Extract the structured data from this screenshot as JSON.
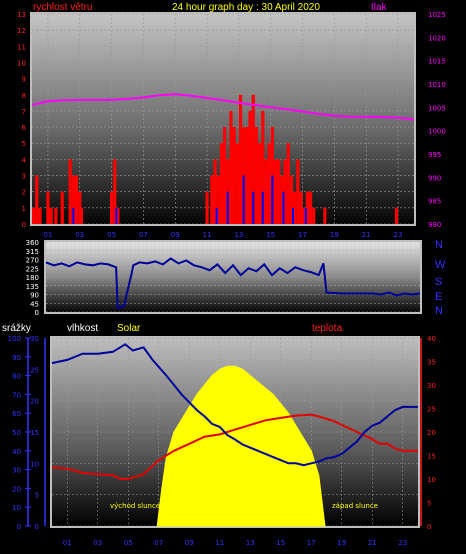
{
  "header": {
    "wind_label": "rychlost větru",
    "title": "24 hour graph day : 30 April 2020",
    "pressure_label": "tlak"
  },
  "direction_letters": [
    "N",
    "W",
    "S",
    "E",
    "N"
  ],
  "bottom_labels": {
    "rain": "srážky",
    "humidity": "vlhkost",
    "solar": "Solar",
    "temperature": "teplota",
    "sunrise": "východ slunce",
    "sunset": "západ slunce"
  },
  "colors": {
    "wind": "#ff0000",
    "gust": "#0000ff",
    "pressure": "#ff00ff",
    "direction": "#000099",
    "humidity": "#00009a",
    "temperature": "#e00000",
    "solar": "#ffff00",
    "title": "#ffff00",
    "axis_left": "#ff2020",
    "axis_blue": "#3333ff"
  },
  "chart_data": [
    {
      "type": "bar",
      "name": "wind-and-pressure",
      "x_ticks": [
        "01",
        "03",
        "05",
        "07",
        "09",
        "11",
        "13",
        "15",
        "17",
        "19",
        "21",
        "23"
      ],
      "xlim": [
        0,
        24
      ],
      "ylim_left": [
        0,
        13
      ],
      "y_ticks_left": [
        "0",
        "1",
        "2",
        "3",
        "4",
        "5",
        "6",
        "7",
        "8",
        "9",
        "10",
        "11",
        "12",
        "13"
      ],
      "ylim_right": [
        980,
        1025
      ],
      "y_ticks_right": [
        "980",
        "985",
        "990",
        "995",
        "1000",
        "1005",
        "1010",
        "1015",
        "1020",
        "1025"
      ],
      "pressure": {
        "x": [
          0,
          1,
          2,
          3,
          4,
          5,
          6,
          7,
          8,
          9,
          10,
          11,
          12,
          13,
          14,
          15,
          16,
          17,
          18,
          19,
          20,
          21,
          22,
          23,
          24
        ],
        "y": [
          1005.5,
          1006.3,
          1006.5,
          1006.6,
          1006.6,
          1006.6,
          1006.8,
          1007.1,
          1007.6,
          1007.8,
          1007.5,
          1007.0,
          1006.5,
          1006.0,
          1005.5,
          1005.0,
          1004.6,
          1004.1,
          1003.6,
          1003.2,
          1003.0,
          1003.0,
          1002.9,
          1002.8,
          1002.4
        ]
      },
      "wind": {
        "x": [
          0.1,
          0.3,
          0.5,
          1.0,
          1.2,
          1.5,
          1.9,
          2.4,
          2.6,
          2.8,
          3.0,
          3.1,
          5.0,
          5.2,
          5.4,
          11.0,
          11.3,
          11.5,
          11.7,
          11.9,
          12.1,
          12.3,
          12.5,
          12.7,
          12.9,
          13.1,
          13.3,
          13.5,
          13.7,
          13.9,
          14.1,
          14.3,
          14.5,
          14.7,
          14.9,
          15.1,
          15.3,
          15.5,
          15.7,
          15.9,
          16.1,
          16.3,
          16.5,
          16.7,
          16.9,
          17.1,
          17.3,
          17.5,
          17.7,
          18.4,
          22.9
        ],
        "y": [
          1.0,
          3.0,
          1.0,
          2.0,
          1.0,
          1.0,
          2.0,
          4.0,
          3.0,
          3.0,
          2.0,
          1.0,
          2.0,
          4.0,
          1.0,
          2.0,
          3.0,
          4.0,
          3.0,
          5.0,
          6.0,
          4.0,
          7.0,
          6.0,
          5.0,
          8.0,
          6.0,
          6.0,
          7.0,
          8.0,
          6.0,
          5.0,
          7.0,
          4.0,
          5.0,
          6.0,
          4.0,
          4.0,
          3.0,
          4.0,
          5.0,
          3.0,
          2.0,
          4.0,
          2.0,
          1.0,
          2.0,
          2.0,
          1.0,
          1.0,
          1.0
        ]
      },
      "gust": {
        "x": [
          2.6,
          5.3,
          11.6,
          12.3,
          13.3,
          13.9,
          14.5,
          15.1,
          15.8,
          16.4,
          17.2
        ],
        "y": [
          1.0,
          1.0,
          1.0,
          2.0,
          3.0,
          2.0,
          2.0,
          3.0,
          2.0,
          1.0,
          1.0
        ]
      }
    },
    {
      "type": "line",
      "name": "wind-direction",
      "xlim": [
        0,
        24
      ],
      "ylim": [
        0,
        360
      ],
      "y_ticks": [
        "0",
        "45",
        "90",
        "135",
        "180",
        "225",
        "270",
        "315",
        "360"
      ],
      "x": [
        0.0,
        0.5,
        1.0,
        1.5,
        2.0,
        2.5,
        3.0,
        3.5,
        4.0,
        4.5,
        4.6,
        5.0,
        5.5,
        5.6,
        6.0,
        6.5,
        7.0,
        7.5,
        8.0,
        8.5,
        9.0,
        9.5,
        10.0,
        10.5,
        11.0,
        11.5,
        12.0,
        12.5,
        13.0,
        13.5,
        14.0,
        14.5,
        15.0,
        15.5,
        16.0,
        16.5,
        17.0,
        17.5,
        17.8,
        18.0,
        19.0,
        20.0,
        21.0,
        21.5,
        22.0,
        22.5,
        23.0,
        23.5,
        24.0
      ],
      "y": [
        255,
        240,
        250,
        235,
        255,
        245,
        240,
        250,
        245,
        230,
        20,
        30,
        200,
        240,
        255,
        250,
        260,
        245,
        275,
        250,
        265,
        240,
        230,
        215,
        245,
        200,
        240,
        190,
        225,
        210,
        245,
        190,
        225,
        200,
        230,
        215,
        205,
        190,
        250,
        100,
        95,
        95,
        95,
        90,
        100,
        85,
        95,
        90,
        95
      ]
    },
    {
      "type": "line",
      "name": "humidity-solar-temperature",
      "x_ticks": [
        "01",
        "03",
        "05",
        "07",
        "09",
        "11",
        "13",
        "15",
        "17",
        "19",
        "21",
        "23"
      ],
      "xlim": [
        0,
        24
      ],
      "rain_ticks": [
        "0",
        "10",
        "20",
        "30",
        "40",
        "50",
        "60",
        "70",
        "80",
        "90",
        "100"
      ],
      "ylim_humidity": [
        0,
        30
      ],
      "humidity_ticks": [
        "0",
        "5",
        "10",
        "15",
        "20",
        "25",
        "30"
      ],
      "ylim_temperature": [
        0,
        40
      ],
      "temperature_ticks": [
        "0",
        "5",
        "10",
        "15",
        "20",
        "25",
        "30",
        "35",
        "40"
      ],
      "humidity": {
        "x": [
          0.0,
          1.0,
          2.0,
          3.0,
          4.0,
          4.8,
          5.3,
          6.0,
          6.6,
          7.5,
          8.5,
          9.5,
          10.0,
          10.5,
          11.0,
          11.5,
          12.0,
          12.5,
          13.0,
          13.5,
          14.0,
          14.5,
          15.0,
          15.5,
          16.0,
          16.5,
          17.0,
          17.5,
          18.0,
          18.5,
          19.0,
          19.5,
          20.0,
          20.5,
          21.0,
          21.5,
          22.0,
          22.5,
          23.0,
          23.5,
          24.0
        ],
        "y": [
          26.0,
          26.5,
          27.5,
          27.5,
          27.8,
          29.0,
          28.0,
          28.5,
          26.5,
          24.0,
          21.0,
          18.5,
          17.5,
          16.3,
          15.8,
          14.5,
          13.8,
          13.0,
          12.5,
          12.0,
          11.5,
          11.0,
          10.5,
          10.0,
          10.0,
          9.7,
          10.0,
          10.3,
          10.8,
          11.0,
          11.5,
          12.5,
          13.5,
          15.0,
          16.0,
          16.5,
          17.5,
          18.5,
          19.0,
          19.0,
          19.0
        ]
      },
      "temperature": {
        "x": [
          0.0,
          1.0,
          2.0,
          3.0,
          4.0,
          4.5,
          5.0,
          5.5,
          6.0,
          6.5,
          7.0,
          7.5,
          8.0,
          9.0,
          10.0,
          11.0,
          12.0,
          13.0,
          14.0,
          15.0,
          16.0,
          17.0,
          17.5,
          18.0,
          18.5,
          19.0,
          20.0,
          21.0,
          21.5,
          22.0,
          22.5,
          23.0,
          24.0
        ],
        "y": [
          12.5,
          12.2,
          11.3,
          11.0,
          10.8,
          10.0,
          10.0,
          10.5,
          11.0,
          12.5,
          14.0,
          15.0,
          16.0,
          17.5,
          19.0,
          19.5,
          20.5,
          21.5,
          22.5,
          23.0,
          23.5,
          23.7,
          23.3,
          22.8,
          22.3,
          21.5,
          20.0,
          18.5,
          17.5,
          17.5,
          16.5,
          16.0,
          16.0
        ]
      },
      "solar": {
        "x": [
          6.9,
          7.2,
          7.5,
          8.0,
          8.5,
          9.0,
          9.5,
          10.0,
          10.5,
          11.0,
          11.5,
          12.0,
          12.5,
          13.0,
          13.5,
          14.0,
          14.5,
          15.0,
          15.5,
          16.0,
          16.5,
          17.0,
          17.5,
          17.9
        ],
        "y": [
          0,
          6,
          11,
          15,
          17,
          19,
          21,
          22.5,
          24,
          25,
          25.5,
          25.5,
          25,
          24,
          23,
          22,
          21,
          19.5,
          18,
          16,
          14,
          12,
          8,
          0
        ]
      },
      "rain": {
        "x": [],
        "y": []
      }
    }
  ]
}
